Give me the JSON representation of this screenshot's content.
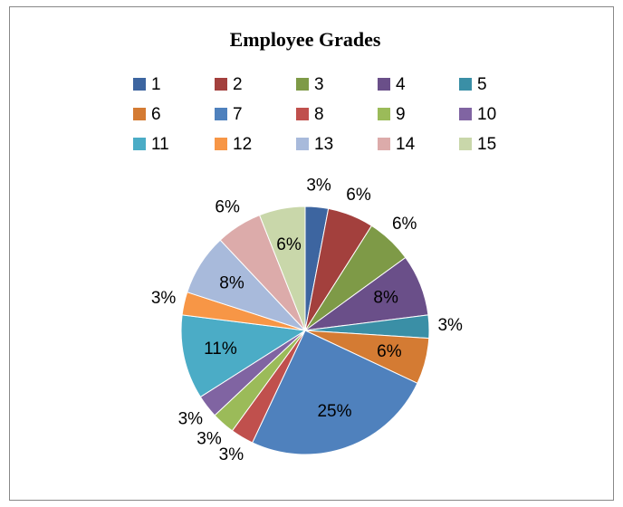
{
  "chart_data": {
    "type": "pie",
    "title": "Employee Grades",
    "categories": [
      "1",
      "2",
      "3",
      "4",
      "5",
      "6",
      "7",
      "8",
      "9",
      "10",
      "11",
      "12",
      "13",
      "14",
      "15"
    ],
    "values": [
      3,
      6,
      6,
      8,
      3,
      6,
      25,
      3,
      3,
      3,
      11,
      3,
      8,
      6,
      6
    ],
    "value_labels": [
      "3%",
      "6%",
      "6%",
      "8%",
      "3%",
      "6%",
      "25%",
      "3%",
      "3%",
      "3%",
      "11%",
      "3%",
      "8%",
      "6%",
      "6%"
    ],
    "colors": [
      "#3D65A0",
      "#A3403D",
      "#7E9A47",
      "#6A4F89",
      "#3A8FA6",
      "#D47B33",
      "#4F81BD",
      "#C0504D",
      "#9BBB59",
      "#8064A2",
      "#4BACC6",
      "#F79646",
      "#A8BADB",
      "#DCABAA",
      "#C9D7AA"
    ],
    "legend": "top"
  }
}
